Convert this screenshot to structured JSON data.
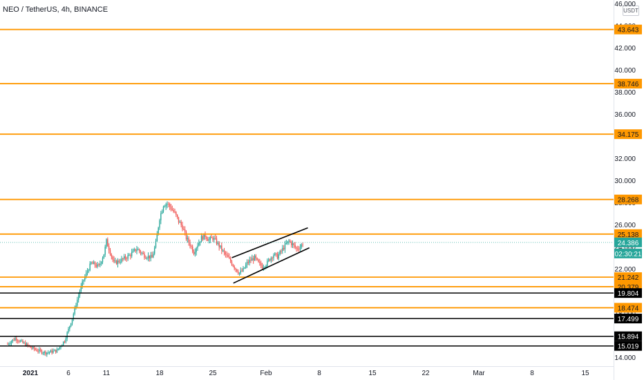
{
  "header": {
    "symbol": "NEO / TetherUS",
    "interval": "4h",
    "exchange": "BINANCE",
    "currency_button": "USDT"
  },
  "colors": {
    "orange_level": "#ff9800",
    "black_level": "#000000",
    "candle_up": "#26a69a",
    "candle_down": "#ef5350",
    "current_price": "#26a69a",
    "axis_text": "#131722"
  },
  "chart_data": {
    "type": "candlestick",
    "title": "NEO / TetherUS, 4h, BINANCE",
    "ylim": [
      14.0,
      47.5
    ],
    "y_ticks": [
      "14.000",
      "16.000",
      "18.000",
      "20.000",
      "22.000",
      "24.000",
      "26.000",
      "28.000",
      "30.000",
      "32.000",
      "34.000",
      "36.000",
      "38.000",
      "40.000",
      "42.000",
      "44.000",
      "46.000"
    ],
    "x_ticks": [
      "2021",
      "6",
      "11",
      "18",
      "25",
      "Feb",
      "8",
      "15",
      "22",
      "Mar",
      "8",
      "15"
    ],
    "x_tick_days": [
      1,
      6,
      11,
      18,
      25,
      32,
      39,
      46,
      53,
      60,
      67,
      74
    ],
    "horizontal_levels": [
      {
        "value": 43.643,
        "label": "43.643",
        "color": "orange"
      },
      {
        "value": 38.746,
        "label": "38.746",
        "color": "orange"
      },
      {
        "value": 34.175,
        "label": "34.175",
        "color": "orange"
      },
      {
        "value": 28.268,
        "label": "28.268",
        "color": "orange"
      },
      {
        "value": 25.138,
        "label": "25.138",
        "color": "orange"
      },
      {
        "value": 21.242,
        "label": "21.242",
        "color": "orange"
      },
      {
        "value": 20.379,
        "label": "20.379",
        "color": "orange"
      },
      {
        "value": 19.804,
        "label": "19.804",
        "color": "black"
      },
      {
        "value": 18.474,
        "label": "18.474",
        "color": "orange"
      },
      {
        "value": 17.499,
        "label": "17.499",
        "color": "black"
      },
      {
        "value": 15.894,
        "label": "15.894",
        "color": "black"
      },
      {
        "value": 15.019,
        "label": "15.019",
        "color": "black"
      }
    ],
    "current_price": {
      "value": 24.386,
      "label": "24.386",
      "countdown": "02:30:21"
    },
    "channel": {
      "upper": {
        "from": [
          27.5,
          23.0
        ],
        "to": [
          37.5,
          25.7
        ]
      },
      "lower": {
        "from": [
          27.7,
          20.7
        ],
        "to": [
          37.7,
          23.9
        ]
      }
    },
    "candle_path": [
      [
        -2.0,
        15.2
      ],
      [
        -1.0,
        15.7
      ],
      [
        0.0,
        15.3
      ],
      [
        1.0,
        14.9
      ],
      [
        2.0,
        14.6
      ],
      [
        3.0,
        14.4
      ],
      [
        4.5,
        14.6
      ],
      [
        5.5,
        15.5
      ],
      [
        6.0,
        16.5
      ],
      [
        6.5,
        17.5
      ],
      [
        7.0,
        18.8
      ],
      [
        7.5,
        20.0
      ],
      [
        8.0,
        21.0
      ],
      [
        8.5,
        21.8
      ],
      [
        9.0,
        22.5
      ],
      [
        10.0,
        22.2
      ],
      [
        10.7,
        23.4
      ],
      [
        11.0,
        24.5
      ],
      [
        11.5,
        23.5
      ],
      [
        12.0,
        22.5
      ],
      [
        13.0,
        22.8
      ],
      [
        14.0,
        23.2
      ],
      [
        15.0,
        23.8
      ],
      [
        16.0,
        23.2
      ],
      [
        17.0,
        23.0
      ],
      [
        17.5,
        24.3
      ],
      [
        18.0,
        26.6
      ],
      [
        18.5,
        27.8
      ],
      [
        19.0,
        27.9
      ],
      [
        19.5,
        27.5
      ],
      [
        20.0,
        27.0
      ],
      [
        20.5,
        26.3
      ],
      [
        21.0,
        25.8
      ],
      [
        21.5,
        24.8
      ],
      [
        22.0,
        24.2
      ],
      [
        22.5,
        23.5
      ],
      [
        23.0,
        24.2
      ],
      [
        23.5,
        24.8
      ],
      [
        24.0,
        25.0
      ],
      [
        24.5,
        24.6
      ],
      [
        25.0,
        24.8
      ],
      [
        25.5,
        24.4
      ],
      [
        26.0,
        23.9
      ],
      [
        26.5,
        23.4
      ],
      [
        27.0,
        23.0
      ],
      [
        27.5,
        22.5
      ],
      [
        28.0,
        22.0
      ],
      [
        28.5,
        21.6
      ],
      [
        29.0,
        21.9
      ],
      [
        29.5,
        22.5
      ],
      [
        30.0,
        22.8
      ],
      [
        30.5,
        23.0
      ],
      [
        31.0,
        22.5
      ],
      [
        31.5,
        22.2
      ],
      [
        32.0,
        22.4
      ],
      [
        32.5,
        22.9
      ],
      [
        33.0,
        23.3
      ],
      [
        33.5,
        23.1
      ],
      [
        34.0,
        23.6
      ],
      [
        34.5,
        24.1
      ],
      [
        35.0,
        24.5
      ],
      [
        35.5,
        24.2
      ],
      [
        36.0,
        23.8
      ],
      [
        36.5,
        24.0
      ],
      [
        37.0,
        24.4
      ]
    ]
  }
}
